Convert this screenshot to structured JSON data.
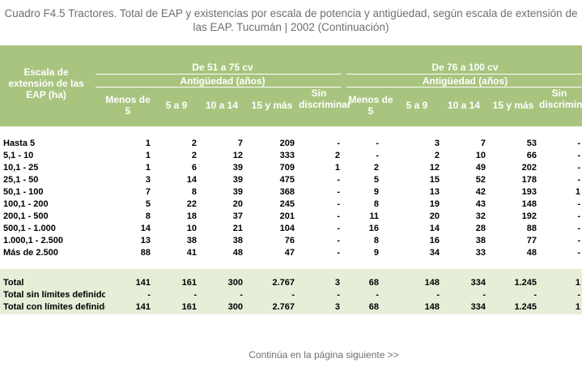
{
  "title": "Cuadro F4.5 Tractores. Total de EAP y existencias por escala de potencia y antigüedad, según escala de extensión de las EAP.  Tucumán | 2002 (Continuación)",
  "header": {
    "row_label": "Escala de extensión de las EAP (ha)",
    "group1": "De 51 a 75 cv",
    "group2": "De 76 a 100 cv",
    "sub1": "Antigüedad (años)",
    "sub2": "Antigüedad (años)",
    "columns": [
      "Menos de 5",
      "5 a 9",
      "10 a 14",
      "15 y más",
      "Sin discriminar",
      "Menos de 5",
      "5 a 9",
      "10 a 14",
      "15 y más",
      "Sin discriminar"
    ]
  },
  "rows": [
    {
      "label": "Hasta 5",
      "values": [
        "1",
        "2",
        "7",
        "209",
        "-",
        "-",
        "3",
        "7",
        "53",
        "-"
      ]
    },
    {
      "label": "5,1 - 10",
      "values": [
        "1",
        "2",
        "12",
        "333",
        "2",
        "-",
        "2",
        "10",
        "66",
        "-"
      ]
    },
    {
      "label": "10,1 - 25",
      "values": [
        "1",
        "6",
        "39",
        "709",
        "1",
        "2",
        "12",
        "49",
        "202",
        "-"
      ]
    },
    {
      "label": "25,1 - 50",
      "values": [
        "3",
        "14",
        "39",
        "475",
        "-",
        "5",
        "15",
        "52",
        "178",
        "-"
      ]
    },
    {
      "label": "50,1 - 100",
      "values": [
        "7",
        "8",
        "39",
        "368",
        "-",
        "9",
        "13",
        "42",
        "193",
        "1"
      ]
    },
    {
      "label": "100,1 - 200",
      "values": [
        "5",
        "22",
        "20",
        "245",
        "-",
        "8",
        "19",
        "43",
        "148",
        "-"
      ]
    },
    {
      "label": "200,1 - 500",
      "values": [
        "8",
        "18",
        "37",
        "201",
        "-",
        "11",
        "20",
        "32",
        "192",
        "-"
      ]
    },
    {
      "label": "500,1 - 1.000",
      "values": [
        "14",
        "10",
        "21",
        "104",
        "-",
        "16",
        "14",
        "28",
        "88",
        "-"
      ]
    },
    {
      "label": "1.000,1 - 2.500",
      "values": [
        "13",
        "38",
        "38",
        "76",
        "-",
        "8",
        "16",
        "38",
        "77",
        "-"
      ]
    },
    {
      "label": "Más de 2.500",
      "values": [
        "88",
        "41",
        "48",
        "47",
        "-",
        "9",
        "34",
        "33",
        "48",
        "-"
      ]
    }
  ],
  "totals": [
    {
      "label": "Total",
      "values": [
        "141",
        "161",
        "300",
        "2.767",
        "3",
        "68",
        "148",
        "334",
        "1.245",
        "1"
      ]
    },
    {
      "label": "Total sin límites definidos",
      "values": [
        "-",
        "-",
        "-",
        "-",
        "-",
        "-",
        "-",
        "-",
        "-",
        "-"
      ]
    },
    {
      "label": "Total con límites definidos",
      "values": [
        "141",
        "161",
        "300",
        "2.767",
        "3",
        "68",
        "148",
        "334",
        "1.245",
        "1"
      ]
    }
  ],
  "footer": "Continúa en la página siguiente >>"
}
